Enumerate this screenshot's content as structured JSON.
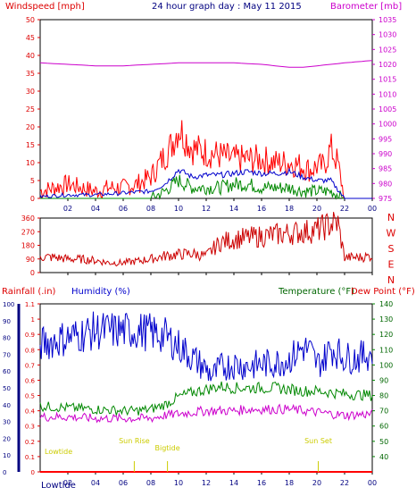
{
  "header": {
    "left_label": "Windspeed [mph]",
    "title": "24 hour graph day : May 11 2015",
    "right_label": "Barometer [mb]"
  },
  "bottom_labels": {
    "rainfall": "Rainfall (.in)",
    "humidity": "Humidity (%)",
    "temperature": "Temperature (°F)",
    "dewpoint": "Dew Point (°F)",
    "footer_left": "Lowtide"
  },
  "events": [
    {
      "label": "Lowtide",
      "hour": 1.2
    },
    {
      "label": "Sun Rise",
      "hour": 6.8
    },
    {
      "label": "Bigtide",
      "hour": 9.2
    },
    {
      "label": "Sun Set",
      "hour": 20.1
    }
  ],
  "colors": {
    "wind": "#ff0000",
    "avg_wind": "#0000cc",
    "gust_low": "#008800",
    "barometer": "#cc00cc",
    "direction": "#cc0000",
    "humidity": "#0000cc",
    "temperature": "#008800",
    "dewpoint": "#cc00cc",
    "rain": "#ff0000"
  },
  "chart_data": [
    {
      "type": "line",
      "x_ticks": [
        "02",
        "04",
        "06",
        "08",
        "10",
        "12",
        "14",
        "16",
        "18",
        "20",
        "22",
        "00"
      ],
      "xlim": [
        0,
        24
      ],
      "left_axis": {
        "ylim": [
          0,
          50
        ],
        "ticks": [
          "0",
          "5",
          "10",
          "15",
          "20",
          "25",
          "30",
          "35",
          "40",
          "45",
          "50"
        ]
      },
      "right_axis": {
        "ylim": [
          975,
          1035
        ],
        "ticks": [
          "975",
          "980",
          "985",
          "990",
          "995",
          "1000",
          "1005",
          "1010",
          "1015",
          "1020",
          "1025",
          "1030",
          "1035"
        ]
      },
      "series": [
        {
          "key": "barometer",
          "axis": "right",
          "x": [
            0,
            2,
            4,
            6,
            8,
            10,
            12,
            14,
            16,
            18,
            19,
            20,
            22,
            24
          ],
          "y": [
            1020.5,
            1020,
            1019.5,
            1019.5,
            1020,
            1020.5,
            1020.5,
            1020.5,
            1020,
            1019,
            1019,
            1019.5,
            1020.5,
            1021.3
          ]
        },
        {
          "key": "wind",
          "axis": "left",
          "x": [
            0,
            1,
            2,
            3,
            4,
            5,
            6,
            7,
            8,
            9,
            9.5,
            10,
            10.5,
            11,
            12,
            13,
            14,
            15,
            16,
            17,
            18,
            19,
            19.5,
            20,
            20.5,
            21,
            21.5,
            22,
            24
          ],
          "y": [
            2,
            3,
            4,
            3,
            2,
            3,
            3,
            4,
            6,
            12,
            15,
            20,
            17,
            14,
            13,
            12,
            11,
            11,
            11,
            10,
            10,
            9,
            8,
            9,
            9,
            14,
            10,
            0,
            0
          ]
        },
        {
          "key": "avg_wind",
          "axis": "left",
          "x": [
            0,
            2,
            4,
            6,
            8,
            9,
            10,
            11,
            12,
            13,
            14,
            15,
            16,
            17,
            18,
            19,
            20,
            21,
            22,
            24
          ],
          "y": [
            0.5,
            1,
            1,
            1.5,
            2,
            4,
            8,
            6,
            6.5,
            6.5,
            7,
            7.5,
            7,
            7,
            7.5,
            6,
            5,
            5,
            0,
            0
          ]
        },
        {
          "key": "gust_low",
          "axis": "left",
          "x": [
            0,
            2,
            4,
            6,
            8,
            9,
            10,
            11,
            12,
            13,
            14,
            15,
            16,
            17,
            18,
            19,
            20,
            21,
            22,
            24
          ],
          "y": [
            0,
            0,
            0,
            0,
            0,
            2,
            5,
            3,
            3,
            3,
            4,
            4,
            3,
            3,
            3,
            2,
            2,
            2,
            0,
            0
          ]
        }
      ]
    },
    {
      "type": "line",
      "x_ticks": [
        "02",
        "04",
        "06",
        "08",
        "10",
        "12",
        "14",
        "16",
        "18",
        "20",
        "22",
        "00"
      ],
      "xlim": [
        0,
        24
      ],
      "left_axis": {
        "ylim": [
          0,
          360
        ],
        "ticks": [
          "0",
          "90",
          "180",
          "270",
          "360"
        ]
      },
      "right_axis": {
        "ticks": [
          "N",
          "W",
          "S",
          "E",
          "N"
        ]
      },
      "series": [
        {
          "key": "direction",
          "x": [
            0,
            1,
            2,
            3,
            4,
            5,
            6,
            7,
            8,
            9,
            10,
            11,
            12,
            13,
            14,
            15,
            16,
            17,
            18,
            19,
            20,
            20.5,
            21,
            21.5,
            22,
            23,
            24
          ],
          "y": [
            105,
            100,
            90,
            88,
            80,
            65,
            65,
            75,
            90,
            110,
            120,
            125,
            110,
            200,
            220,
            230,
            240,
            250,
            260,
            270,
            280,
            300,
            320,
            330,
            100,
            100,
            110
          ]
        }
      ]
    },
    {
      "type": "line",
      "x_ticks": [
        "02",
        "04",
        "06",
        "08",
        "10",
        "12",
        "14",
        "16",
        "18",
        "20",
        "22",
        "00"
      ],
      "xlim": [
        0,
        24
      ],
      "left_axis_rain": {
        "ylim": [
          0,
          1.1
        ],
        "ticks": [
          "0",
          "0.1",
          "0.2",
          "0.3",
          "0.4",
          "0.5",
          "0.6",
          "0.7",
          "0.8",
          "0.9",
          "1",
          "1.1"
        ]
      },
      "left_axis_humidity": {
        "ylim": [
          0,
          100
        ],
        "ticks": [
          "0",
          "10",
          "20",
          "30",
          "40",
          "50",
          "60",
          "70",
          "80",
          "90",
          "100"
        ]
      },
      "right_axis_temp": {
        "ylim": [
          30,
          140
        ],
        "ticks": [
          "40",
          "50",
          "60",
          "70",
          "80",
          "90",
          "100",
          "110",
          "120",
          "130",
          "140"
        ]
      },
      "series": [
        {
          "key": "humidity",
          "axis": "humidity",
          "x": [
            0,
            1,
            2,
            3,
            4,
            5,
            6,
            7,
            8,
            9,
            10,
            11,
            12,
            12.5,
            13,
            14,
            15,
            16,
            17,
            18,
            19,
            19.5,
            20,
            20.5,
            21,
            22,
            23,
            24
          ],
          "y": [
            76,
            78,
            80,
            82,
            84,
            84,
            84,
            84,
            83,
            81,
            75,
            68,
            61,
            57,
            62,
            64,
            63,
            64,
            65,
            67,
            74,
            72,
            64,
            67,
            74,
            68,
            68,
            71
          ]
        },
        {
          "key": "temperature",
          "axis": "temp",
          "x": [
            0,
            2,
            4,
            6,
            7,
            8,
            9,
            10,
            11,
            12,
            13,
            14,
            15,
            16,
            17,
            18,
            19,
            20,
            21,
            22,
            24
          ],
          "y": [
            73,
            72,
            71,
            70,
            70,
            71,
            74,
            79,
            82,
            84,
            86,
            85,
            85,
            85,
            85,
            84,
            83,
            83,
            82,
            81,
            80
          ]
        },
        {
          "key": "dewpoint",
          "axis": "temp",
          "x": [
            0,
            2,
            4,
            6,
            7,
            8,
            9,
            10,
            11,
            12,
            13,
            14,
            15,
            16,
            17,
            18,
            19,
            20,
            21,
            22,
            24
          ],
          "y": [
            66,
            66,
            65,
            65,
            65,
            65,
            67,
            68,
            69,
            70,
            70,
            70,
            71,
            71,
            71,
            71,
            70,
            69,
            68,
            67,
            68
          ]
        },
        {
          "key": "rain",
          "axis": "rain",
          "x": [
            0,
            24
          ],
          "y": [
            0,
            0
          ]
        }
      ]
    }
  ]
}
